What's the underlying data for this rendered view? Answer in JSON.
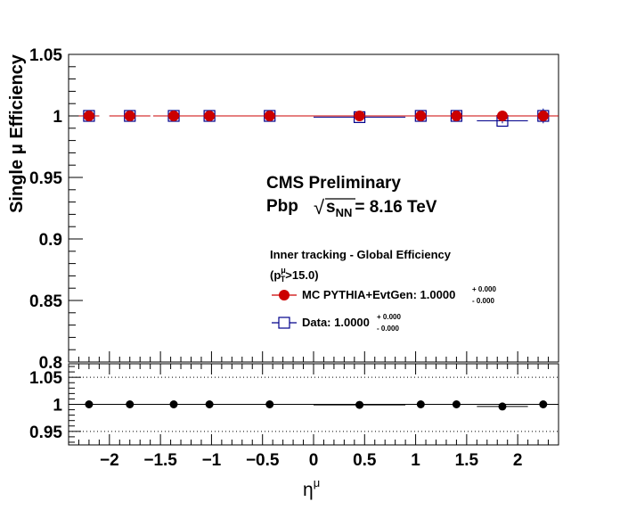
{
  "chart_data": [
    {
      "type": "scatter",
      "panel": "main",
      "ylabel": "Single  μ Efficiency",
      "ylim": [
        0.8,
        1.05
      ],
      "xlim": [
        -2.4,
        2.4
      ],
      "yticks": [
        "0.8",
        "0.85",
        "0.9",
        "0.95",
        "1",
        "1.05"
      ],
      "annotations": {
        "experiment": "CMS Preliminary",
        "system": "Pbp",
        "sqrt_symbol": "√",
        "energy_var": "s",
        "energy_sub": "NN",
        "energy_value": "= 8.16 TeV",
        "selection": "Inner tracking - Global Efficiency",
        "cut_open": "(p",
        "cut_sup": "μ",
        "cut_sub": "T",
        "cut_close": ">15.0)"
      },
      "series": [
        {
          "name": "MC PYTHIA+EvtGen: 1.0000",
          "name_sup": "+ 0.000",
          "name_sub": "- 0.000",
          "color": "#cc0000",
          "marker": "filled-circle",
          "x": [
            -2.2,
            -1.8,
            -1.37,
            -1.02,
            -0.43,
            0.45,
            1.05,
            1.4,
            1.85,
            2.25
          ],
          "xerr": [
            0.1,
            0.2,
            0.2,
            0.2,
            0.45,
            0.45,
            0.15,
            0.2,
            0.25,
            0.15
          ],
          "y": [
            1.0,
            1.0,
            1.0,
            1.0,
            1.0,
            1.0,
            1.0,
            1.0,
            1.0,
            1.0
          ]
        },
        {
          "name": "Data: 1.0000",
          "name_sup": "+ 0.000",
          "name_sub": "- 0.000",
          "color": "#00008b",
          "marker": "open-square",
          "x": [
            -2.2,
            -1.8,
            -1.37,
            -1.02,
            -0.43,
            0.45,
            1.05,
            1.4,
            1.85,
            2.25
          ],
          "xerr": [
            0.1,
            0.2,
            0.2,
            0.2,
            0.45,
            0.45,
            0.15,
            0.2,
            0.25,
            0.15
          ],
          "y": [
            1.0,
            1.0,
            1.0,
            1.0,
            1.0,
            0.999,
            1.0,
            1.0,
            0.996,
            1.0
          ],
          "yerr": [
            0.004,
            0.0,
            0.0,
            0.0,
            0.0,
            0.001,
            0.0,
            0.0,
            0.002,
            0.006
          ]
        }
      ]
    },
    {
      "type": "scatter",
      "panel": "ratio",
      "xlabel": "η",
      "xlabel_sup": "μ",
      "ylim": [
        0.925,
        1.075
      ],
      "xlim": [
        -2.4,
        2.4
      ],
      "yticks": [
        "0.95",
        "1",
        "1.05"
      ],
      "xticks": [
        "−2",
        "−1.5",
        "−1",
        "−0.5",
        "0",
        "0.5",
        "1",
        "1.5",
        "2"
      ],
      "xtick_values": [
        -2,
        -1.5,
        -1,
        -0.5,
        0,
        0.5,
        1,
        1.5,
        2
      ],
      "reference_lines": [
        0.95,
        1.0,
        1.05
      ],
      "series": [
        {
          "color": "#000000",
          "marker": "filled-circle",
          "x": [
            -2.2,
            -1.8,
            -1.37,
            -1.02,
            -0.43,
            0.45,
            1.05,
            1.4,
            1.85,
            2.25
          ],
          "xerr": [
            0.1,
            0.2,
            0.2,
            0.2,
            0.45,
            0.45,
            0.15,
            0.2,
            0.25,
            0.15
          ],
          "y": [
            1.0,
            1.0,
            1.0,
            1.0,
            1.0,
            0.999,
            1.0,
            1.0,
            0.996,
            1.0
          ]
        }
      ]
    }
  ]
}
